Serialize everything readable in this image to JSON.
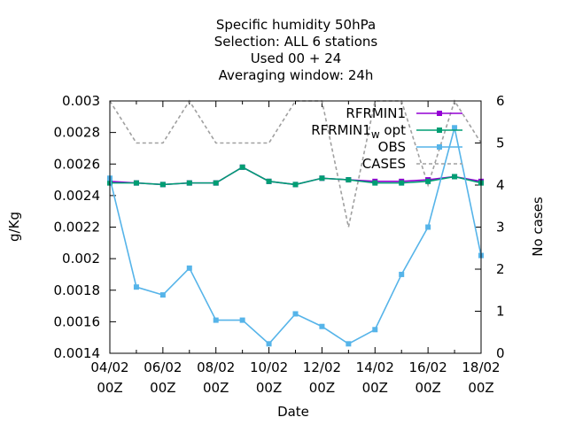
{
  "chart_data": {
    "type": "line",
    "title_lines": [
      "Specific humidity 50hPa",
      "Selection: ALL      6 stations",
      "Used  00 + 24",
      "Averaging window: 24h"
    ],
    "xlabel": "Date",
    "ylabel": "g/Kg",
    "y2label": "No cases",
    "x_tick_labels": [
      [
        "04/02",
        "00Z"
      ],
      [
        "06/02",
        "00Z"
      ],
      [
        "08/02",
        "00Z"
      ],
      [
        "10/02",
        "00Z"
      ],
      [
        "12/02",
        "00Z"
      ],
      [
        "14/02",
        "00Z"
      ],
      [
        "16/02",
        "00Z"
      ],
      [
        "18/02",
        "00Z"
      ]
    ],
    "x_ticks_day": [
      4,
      6,
      8,
      10,
      12,
      14,
      16,
      18
    ],
    "xlim_day": [
      4,
      18
    ],
    "y_ticks": [
      "0.0014",
      "0.0016",
      "0.0018",
      "0.002",
      "0.0022",
      "0.0024",
      "0.0026",
      "0.0028",
      "0.003"
    ],
    "ylim": [
      0.0014,
      0.003
    ],
    "y2_ticks": [
      "0",
      "1",
      "2",
      "3",
      "4",
      "5",
      "6"
    ],
    "y2lim": [
      0,
      6
    ],
    "grid": false,
    "legend_position": "top-right",
    "x_day": [
      4,
      5,
      6,
      7,
      8,
      9,
      10,
      11,
      12,
      13,
      14,
      15,
      16,
      17,
      18
    ],
    "series": [
      {
        "name": "RFRMIN1",
        "axis": "y",
        "color": "#9400d3",
        "style": "solid",
        "values": [
          0.00249,
          0.00248,
          0.00247,
          0.00248,
          0.00248,
          0.00258,
          0.00249,
          0.00247,
          0.00251,
          0.0025,
          0.00249,
          0.00249,
          0.0025,
          0.00252,
          0.00249
        ]
      },
      {
        "name_main": "RFRMIN1",
        "name_sub": "w",
        "name_suffix": " opt",
        "axis": "y",
        "color": "#009e73",
        "style": "solid",
        "values": [
          0.00248,
          0.00248,
          0.00247,
          0.00248,
          0.00248,
          0.00258,
          0.00249,
          0.00247,
          0.00251,
          0.0025,
          0.00248,
          0.00248,
          0.00249,
          0.00252,
          0.00248
        ]
      },
      {
        "name": "OBS",
        "axis": "y",
        "color": "#56b4e9",
        "style": "solid",
        "values": [
          0.00251,
          0.00182,
          0.00177,
          0.00194,
          0.00161,
          0.00161,
          0.00146,
          0.00165,
          0.00157,
          0.00146,
          0.00155,
          0.0019,
          0.0022,
          0.00283,
          0.00202
        ]
      },
      {
        "name": "CASES",
        "axis": "y2",
        "color": "#a0a0a0",
        "style": "dashed",
        "values": [
          6,
          5,
          5,
          6,
          5,
          5,
          5,
          6,
          6,
          3,
          6,
          6,
          4,
          6,
          5
        ]
      }
    ]
  }
}
